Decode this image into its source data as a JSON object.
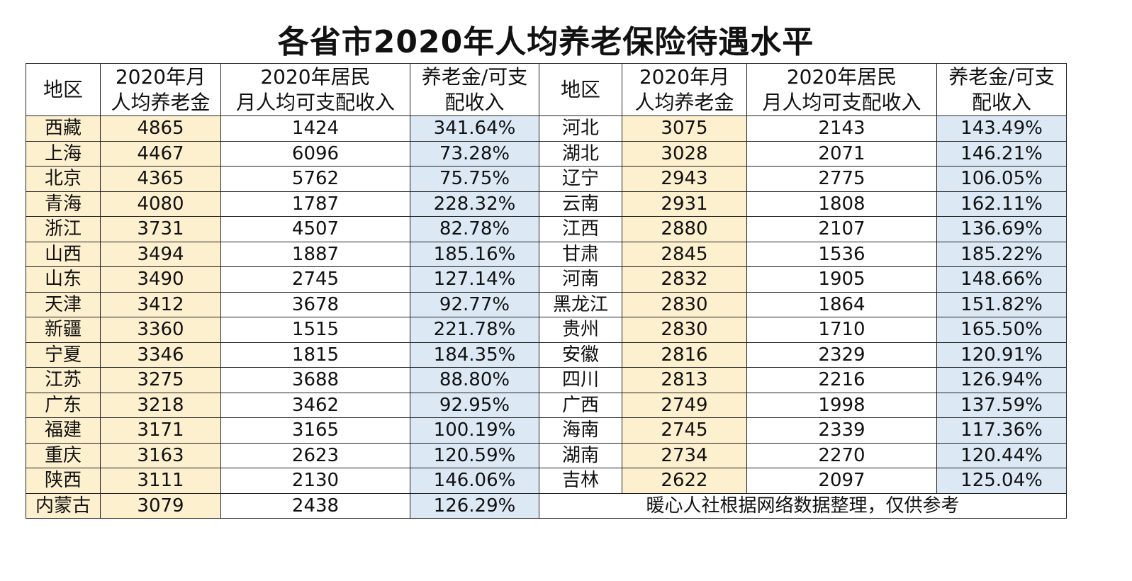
{
  "title": "各省市2020年人均养老保险待遇水平",
  "headers": {
    "region": "地区",
    "pension_l1": "2020年月",
    "pension_l2": "人均养老金",
    "income_l1": "2020年居民",
    "income_l2": "月人均可支配收入",
    "ratio_l1": "养老金/可支",
    "ratio_l2": "配收入"
  },
  "left_rows": [
    {
      "region": "西藏",
      "pension": "4865",
      "income": "1424",
      "ratio": "341.64%"
    },
    {
      "region": "上海",
      "pension": "4467",
      "income": "6096",
      "ratio": "73.28%"
    },
    {
      "region": "北京",
      "pension": "4365",
      "income": "5762",
      "ratio": "75.75%"
    },
    {
      "region": "青海",
      "pension": "4080",
      "income": "1787",
      "ratio": "228.32%"
    },
    {
      "region": "浙江",
      "pension": "3731",
      "income": "4507",
      "ratio": "82.78%"
    },
    {
      "region": "山西",
      "pension": "3494",
      "income": "1887",
      "ratio": "185.16%"
    },
    {
      "region": "山东",
      "pension": "3490",
      "income": "2745",
      "ratio": "127.14%"
    },
    {
      "region": "天津",
      "pension": "3412",
      "income": "3678",
      "ratio": "92.77%"
    },
    {
      "region": "新疆",
      "pension": "3360",
      "income": "1515",
      "ratio": "221.78%"
    },
    {
      "region": "宁夏",
      "pension": "3346",
      "income": "1815",
      "ratio": "184.35%"
    },
    {
      "region": "江苏",
      "pension": "3275",
      "income": "3688",
      "ratio": "88.80%"
    },
    {
      "region": "广东",
      "pension": "3218",
      "income": "3462",
      "ratio": "92.95%"
    },
    {
      "region": "福建",
      "pension": "3171",
      "income": "3165",
      "ratio": "100.19%"
    },
    {
      "region": "重庆",
      "pension": "3163",
      "income": "2623",
      "ratio": "120.59%"
    },
    {
      "region": "陕西",
      "pension": "3111",
      "income": "2130",
      "ratio": "146.06%"
    },
    {
      "region": "内蒙古",
      "pension": "3079",
      "income": "2438",
      "ratio": "126.29%"
    }
  ],
  "right_rows": [
    {
      "region": "河北",
      "pension": "3075",
      "income": "2143",
      "ratio": "143.49%"
    },
    {
      "region": "湖北",
      "pension": "3028",
      "income": "2071",
      "ratio": "146.21%"
    },
    {
      "region": "辽宁",
      "pension": "2943",
      "income": "2775",
      "ratio": "106.05%"
    },
    {
      "region": "云南",
      "pension": "2931",
      "income": "1808",
      "ratio": "162.11%"
    },
    {
      "region": "江西",
      "pension": "2880",
      "income": "2107",
      "ratio": "136.69%"
    },
    {
      "region": "甘肃",
      "pension": "2845",
      "income": "1536",
      "ratio": "185.22%"
    },
    {
      "region": "河南",
      "pension": "2832",
      "income": "1905",
      "ratio": "148.66%"
    },
    {
      "region": "黑龙江",
      "pension": "2830",
      "income": "1864",
      "ratio": "151.82%"
    },
    {
      "region": "贵州",
      "pension": "2830",
      "income": "1710",
      "ratio": "165.50%"
    },
    {
      "region": "安徽",
      "pension": "2816",
      "income": "2329",
      "ratio": "120.91%"
    },
    {
      "region": "四川",
      "pension": "2813",
      "income": "2216",
      "ratio": "126.94%"
    },
    {
      "region": "广西",
      "pension": "2749",
      "income": "1998",
      "ratio": "137.59%"
    },
    {
      "region": "海南",
      "pension": "2745",
      "income": "2339",
      "ratio": "117.36%"
    },
    {
      "region": "湖南",
      "pension": "2734",
      "income": "2270",
      "ratio": "120.44%"
    },
    {
      "region": "吉林",
      "pension": "2622",
      "income": "2097",
      "ratio": "125.04%"
    }
  ],
  "footnote": "暖心人社根据网络数据整理，仅供参考",
  "colors": {
    "pension_fill": "#fdf0cf",
    "ratio_fill": "#dce9f5",
    "border": "#222222"
  }
}
